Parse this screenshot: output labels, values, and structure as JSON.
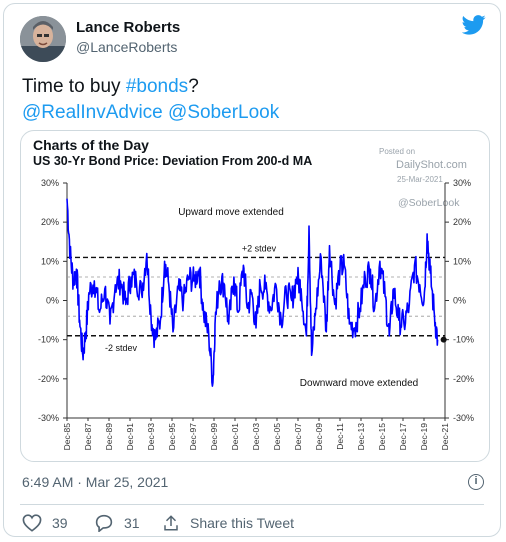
{
  "tweet": {
    "author_name": "Lance Roberts",
    "author_handle": "@LanceRoberts",
    "text_plain": "Time to buy ",
    "hashtag": "#bonds",
    "text_end": "?",
    "mention1": "@RealInvAdvice",
    "mention2": "@SoberLook",
    "timestamp": "6:49 AM · Mar 25, 2021",
    "likes": "39",
    "replies": "31",
    "share_label": "Share this Tweet"
  },
  "watermark": {
    "posted": "Posted on",
    "site": "DailyShot.com",
    "date": "25-Mar-2021",
    "handle": "@SoberLook"
  },
  "chart_data": {
    "type": "line",
    "title": "Charts of the Day",
    "subtitle": "US 30-Yr Bond Price: Deviation From 200-d MA",
    "x_tick_labels": [
      "Dec-85",
      "Dec-87",
      "Dec-89",
      "Dec-91",
      "Dec-93",
      "Dec-95",
      "Dec-97",
      "Dec-99",
      "Dec-01",
      "Dec-03",
      "Dec-05",
      "Dec-07",
      "Dec-09",
      "Dec-11",
      "Dec-13",
      "Dec-15",
      "Dec-17",
      "Dec-19",
      "Dec-21"
    ],
    "y_tick_labels": [
      "30%",
      "20%",
      "10%",
      "0%",
      "-10%",
      "-20%",
      "-30%"
    ],
    "ylim": [
      -30,
      30
    ],
    "reference_lines": [
      {
        "value": 11,
        "label": "+2 stdev",
        "style": "dashed-bold"
      },
      {
        "value": -9,
        "label": "-2 stdev",
        "style": "dashed-bold"
      },
      {
        "value": 6,
        "style": "dashed-light"
      },
      {
        "value": -4,
        "style": "dashed-light"
      }
    ],
    "annotations": [
      "Upward move extended",
      "Downward move extended"
    ],
    "series": [
      {
        "color": "#0000ff",
        "x": [
          1985.9,
          1986.2,
          1986.5,
          1986.8,
          1987.1,
          1987.4,
          1987.7,
          1988.0,
          1988.5,
          1989.0,
          1989.5,
          1990.0,
          1990.5,
          1991.0,
          1991.5,
          1992.0,
          1992.5,
          1993.0,
          1993.5,
          1993.9,
          1994.3,
          1994.8,
          1995.2,
          1995.6,
          1996.0,
          1996.5,
          1997.0,
          1997.5,
          1998.0,
          1998.5,
          1998.9,
          1999.4,
          1999.8,
          2000.0,
          2000.4,
          2000.9,
          2001.3,
          2001.8,
          2002.2,
          2002.7,
          2003.1,
          2003.5,
          2003.9,
          2004.3,
          2004.8,
          2005.3,
          2005.8,
          2006.3,
          2006.8,
          2007.3,
          2007.8,
          2008.2,
          2008.7,
          2008.95,
          2009.2,
          2009.6,
          2010.1,
          2010.6,
          2010.9,
          2011.4,
          2011.9,
          2012.3,
          2012.8,
          2013.3,
          2013.8,
          2014.3,
          2014.8,
          2015.2,
          2015.7,
          2016.2,
          2016.6,
          2017.0,
          2017.5,
          2018.0,
          2018.5,
          2019.0,
          2019.5,
          2019.9,
          2020.2,
          2020.5,
          2020.9,
          2021.2
        ],
        "y": [
          26,
          12,
          5,
          8,
          -5,
          -14,
          -8,
          2,
          5,
          -3,
          3,
          -6,
          4,
          5,
          -1,
          6,
          5,
          2,
          12,
          -4,
          -10,
          -5,
          10,
          4,
          -8,
          3,
          0,
          6,
          5,
          8,
          -3,
          -9,
          -21,
          -6,
          5,
          4,
          -6,
          6,
          -3,
          9,
          -2,
          2,
          -7,
          4,
          3,
          -2,
          4,
          -5,
          2,
          0,
          6,
          3,
          -9,
          19,
          -14,
          -2,
          11,
          -8,
          14,
          -1,
          8,
          9,
          -6,
          -7,
          -2,
          6,
          8,
          -2,
          10,
          1,
          -9,
          3,
          -5,
          -6,
          -1,
          9,
          4,
          0,
          17,
          7,
          -4,
          -10
        ]
      }
    ]
  }
}
